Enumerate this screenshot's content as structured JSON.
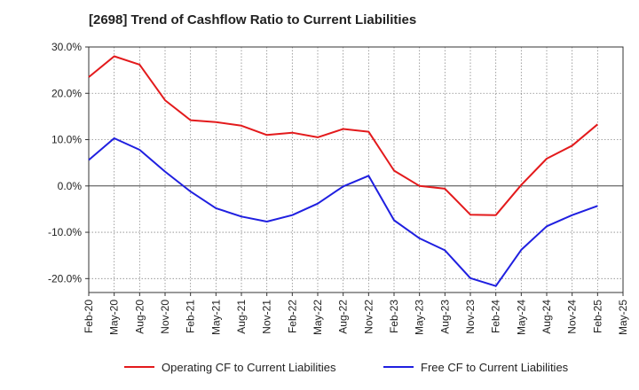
{
  "chart_data": {
    "type": "line",
    "title": "[2698]  Trend of Cashflow Ratio to Current Liabilities",
    "xlabel": "",
    "ylabel": "",
    "ylim": [
      -23,
      30
    ],
    "yticks": [
      30,
      20,
      10,
      0,
      -10,
      -20
    ],
    "ytick_labels": [
      "30.0%",
      "20.0%",
      "10.0%",
      "0.0%",
      "-10.0%",
      "-20.0%"
    ],
    "categories": [
      "Feb-20",
      "May-20",
      "Aug-20",
      "Nov-20",
      "Feb-21",
      "May-21",
      "Aug-21",
      "Nov-21",
      "Feb-22",
      "May-22",
      "Aug-22",
      "Nov-22",
      "Feb-23",
      "May-23",
      "Aug-23",
      "Nov-23",
      "Feb-24",
      "May-24",
      "Aug-24",
      "Nov-24",
      "Feb-25",
      "May-25"
    ],
    "grid": true,
    "legend_position": "bottom",
    "series": [
      {
        "name": "Operating CF to Current Liabilities",
        "color": "#e31a1c",
        "values": [
          23.5,
          28.0,
          26.2,
          18.5,
          14.2,
          13.8,
          13.0,
          11.0,
          11.5,
          10.5,
          12.3,
          11.7,
          3.3,
          0.0,
          -0.6,
          -6.2,
          -6.3,
          0.2,
          5.9,
          8.7,
          13.3,
          null
        ]
      },
      {
        "name": "Free CF to Current Liabilities",
        "color": "#1f1fe0",
        "values": [
          5.6,
          10.3,
          7.8,
          3.1,
          -1.2,
          -4.8,
          -6.6,
          -7.7,
          -6.3,
          -3.8,
          -0.1,
          2.2,
          -7.4,
          -11.3,
          -13.9,
          -19.9,
          -21.6,
          -13.8,
          -8.7,
          -6.3,
          -4.3,
          null
        ]
      }
    ]
  }
}
